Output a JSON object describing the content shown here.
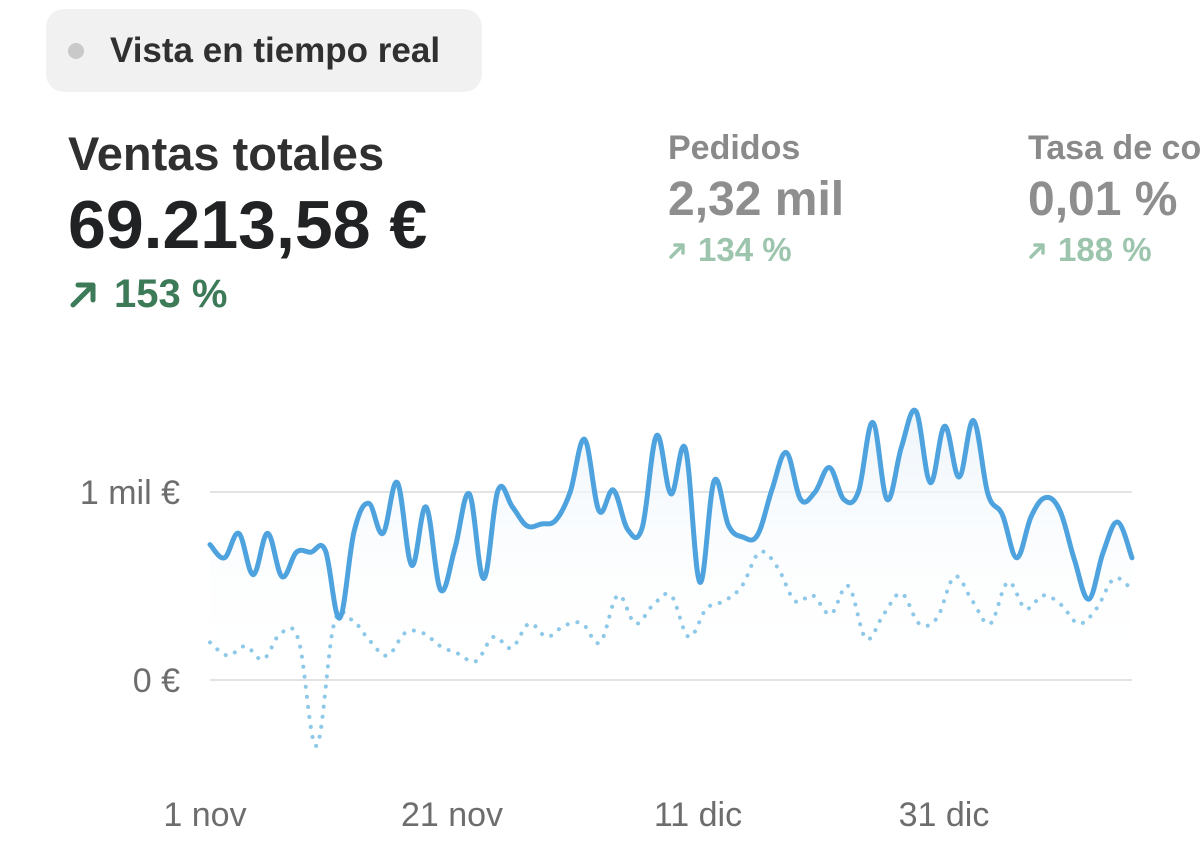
{
  "live_view": {
    "label": "Vista en tiempo real"
  },
  "metrics": {
    "total_sales": {
      "title": "Ventas totales",
      "value": "69.213,58 €",
      "change": "153 %"
    },
    "orders": {
      "title": "Pedidos",
      "value": "2,32 mil",
      "change": "134 %"
    },
    "conversion": {
      "title": "Tasa de conversión",
      "value": "0,01 %",
      "change": "188 %"
    }
  },
  "colors": {
    "positive": "#3d7a58",
    "positive_muted": "#9dc5ad",
    "series_current": "#4ea3df",
    "series_previous": "#8ec8e8",
    "gridline": "#e3e3e3"
  },
  "chart_data": {
    "type": "line",
    "y_ticks": [
      "1 mil €",
      "0 €"
    ],
    "x_ticks": [
      "1 nov",
      "21 nov",
      "11 dic",
      "31 dic"
    ],
    "ylim": [
      -350,
      1500
    ],
    "grid": true,
    "series": [
      {
        "style": "solid",
        "values": [
          720,
          650,
          780,
          560,
          780,
          550,
          680,
          680,
          690,
          330,
          790,
          940,
          780,
          1050,
          610,
          920,
          480,
          700,
          990,
          540,
          1010,
          920,
          820,
          830,
          850,
          1000,
          1280,
          900,
          1010,
          800,
          810,
          1300,
          990,
          1230,
          520,
          1060,
          820,
          760,
          770,
          1010,
          1210,
          960,
          1000,
          1130,
          960,
          1000,
          1370,
          960,
          1240,
          1430,
          1050,
          1350,
          1080,
          1380,
          990,
          880,
          650,
          870,
          970,
          900,
          640,
          430,
          680,
          840,
          650
        ]
      },
      {
        "style": "dotted",
        "values": [
          200,
          130,
          180,
          110,
          250,
          210,
          -350,
          300,
          320,
          210,
          130,
          250,
          250,
          180,
          140,
          100,
          230,
          170,
          300,
          230,
          290,
          300,
          200,
          450,
          300,
          400,
          450,
          230,
          380,
          420,
          500,
          680,
          600,
          420,
          450,
          350,
          500,
          220,
          350,
          460,
          300,
          330,
          550,
          420,
          300,
          520,
          380,
          450,
          400,
          300,
          380,
          540,
          480
        ]
      }
    ]
  }
}
